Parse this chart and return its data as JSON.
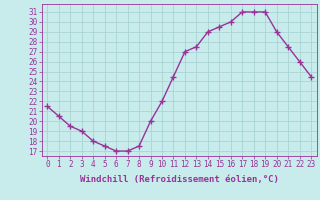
{
  "x": [
    0,
    1,
    2,
    3,
    4,
    5,
    6,
    7,
    8,
    9,
    10,
    11,
    12,
    13,
    14,
    15,
    16,
    17,
    18,
    19,
    20,
    21,
    22,
    23
  ],
  "y": [
    21.5,
    20.5,
    19.5,
    19.0,
    18.0,
    17.5,
    17.0,
    17.0,
    17.5,
    20.0,
    22.0,
    24.5,
    27.0,
    27.5,
    29.0,
    29.5,
    30.0,
    31.0,
    31.0,
    31.0,
    29.0,
    27.5,
    26.0,
    24.5
  ],
  "line_color": "#993399",
  "marker": "+",
  "markersize": 4,
  "linewidth": 1.0,
  "xlabel": "Windchill (Refroidissement éolien,°C)",
  "xlabel_fontsize": 6.5,
  "ylabel_ticks": [
    17,
    18,
    19,
    20,
    21,
    22,
    23,
    24,
    25,
    26,
    27,
    28,
    29,
    30,
    31
  ],
  "xlim": [
    -0.5,
    23.5
  ],
  "ylim": [
    16.5,
    31.8
  ],
  "bg_color": "#c8ecec",
  "grid_color": "#aad4d4",
  "tick_color": "#993399",
  "tick_fontsize": 5.5,
  "xtick_labels": [
    "0",
    "1",
    "2",
    "3",
    "4",
    "5",
    "6",
    "7",
    "8",
    "9",
    "10",
    "11",
    "12",
    "13",
    "14",
    "15",
    "16",
    "17",
    "18",
    "19",
    "20",
    "21",
    "22",
    "23"
  ]
}
